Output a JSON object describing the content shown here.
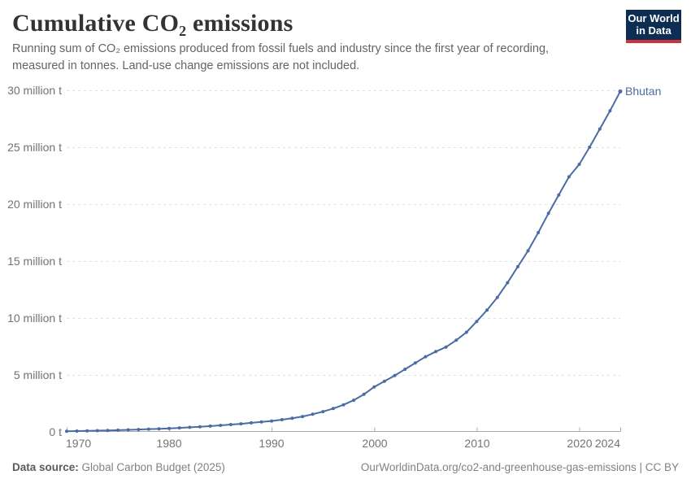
{
  "header": {
    "title": "Cumulative CO₂ emissions",
    "subtitle": "Running sum of CO₂ emissions produced from fossil fuels and industry since the first year of recording, measured in tonnes. Land-use change emissions are not included.",
    "logo_line1": "Our World",
    "logo_line2": "in Data"
  },
  "footer": {
    "source_label": "Data source:",
    "source_value": "Global Carbon Budget (2025)",
    "citation": "OurWorldinData.org/co2-and-greenhouse-gas-emissions | CC BY"
  },
  "colors": {
    "line": "#4b6ba3",
    "series_label": "#4b6ba3",
    "grid": "#e0e0e0",
    "axis": "#ababab",
    "logo_bg": "#0d2d52",
    "logo_accent": "#c8353e"
  },
  "chart_data": {
    "type": "line",
    "title": "Cumulative CO₂ emissions",
    "entity": "Bhutan",
    "ylabel": "",
    "xlabel": "",
    "unit": "million tonnes",
    "xlim": [
      1970,
      2024
    ],
    "ylim_million_t": [
      0,
      30
    ],
    "grid": "dashed-horizontal",
    "legend_position": "end-of-line-label",
    "y_ticks": [
      {
        "value": 30,
        "label": "30 million t"
      },
      {
        "value": 25,
        "label": "25 million t"
      },
      {
        "value": 20,
        "label": "20 million t"
      },
      {
        "value": 15,
        "label": "15 million t"
      },
      {
        "value": 10,
        "label": "10 million t"
      },
      {
        "value": 5,
        "label": "5 million t"
      },
      {
        "value": 0,
        "label": "0 t"
      }
    ],
    "x_ticks": [
      {
        "value": 1970,
        "label": "1970"
      },
      {
        "value": 1980,
        "label": "1980"
      },
      {
        "value": 1990,
        "label": "1990"
      },
      {
        "value": 2000,
        "label": "2000"
      },
      {
        "value": 2010,
        "label": "2010"
      },
      {
        "value": 2020,
        "label": "2020"
      },
      {
        "value": 2024,
        "label": "2024"
      }
    ],
    "x": [
      1970,
      1971,
      1972,
      1973,
      1974,
      1975,
      1976,
      1977,
      1978,
      1979,
      1980,
      1981,
      1982,
      1983,
      1984,
      1985,
      1986,
      1987,
      1988,
      1989,
      1990,
      1991,
      1992,
      1993,
      1994,
      1995,
      1996,
      1997,
      1998,
      1999,
      2000,
      2001,
      2002,
      2003,
      2004,
      2005,
      2006,
      2007,
      2008,
      2009,
      2010,
      2011,
      2012,
      2013,
      2014,
      2015,
      2016,
      2017,
      2018,
      2019,
      2020,
      2021,
      2022,
      2023,
      2024
    ],
    "series": [
      {
        "name": "Bhutan",
        "values_million_t": [
          0.05,
          0.07,
          0.09,
          0.11,
          0.13,
          0.15,
          0.18,
          0.21,
          0.24,
          0.27,
          0.31,
          0.35,
          0.4,
          0.45,
          0.51,
          0.57,
          0.64,
          0.71,
          0.79,
          0.87,
          0.96,
          1.07,
          1.2,
          1.35,
          1.55,
          1.78,
          2.05,
          2.38,
          2.78,
          3.3,
          3.95,
          4.45,
          4.95,
          5.5,
          6.05,
          6.6,
          7.05,
          7.45,
          8.05,
          8.75,
          9.7,
          10.7,
          11.8,
          13.1,
          14.5,
          15.9,
          17.5,
          19.2,
          20.8,
          22.4,
          23.5,
          25.0,
          26.6,
          28.2,
          29.9
        ]
      }
    ]
  }
}
